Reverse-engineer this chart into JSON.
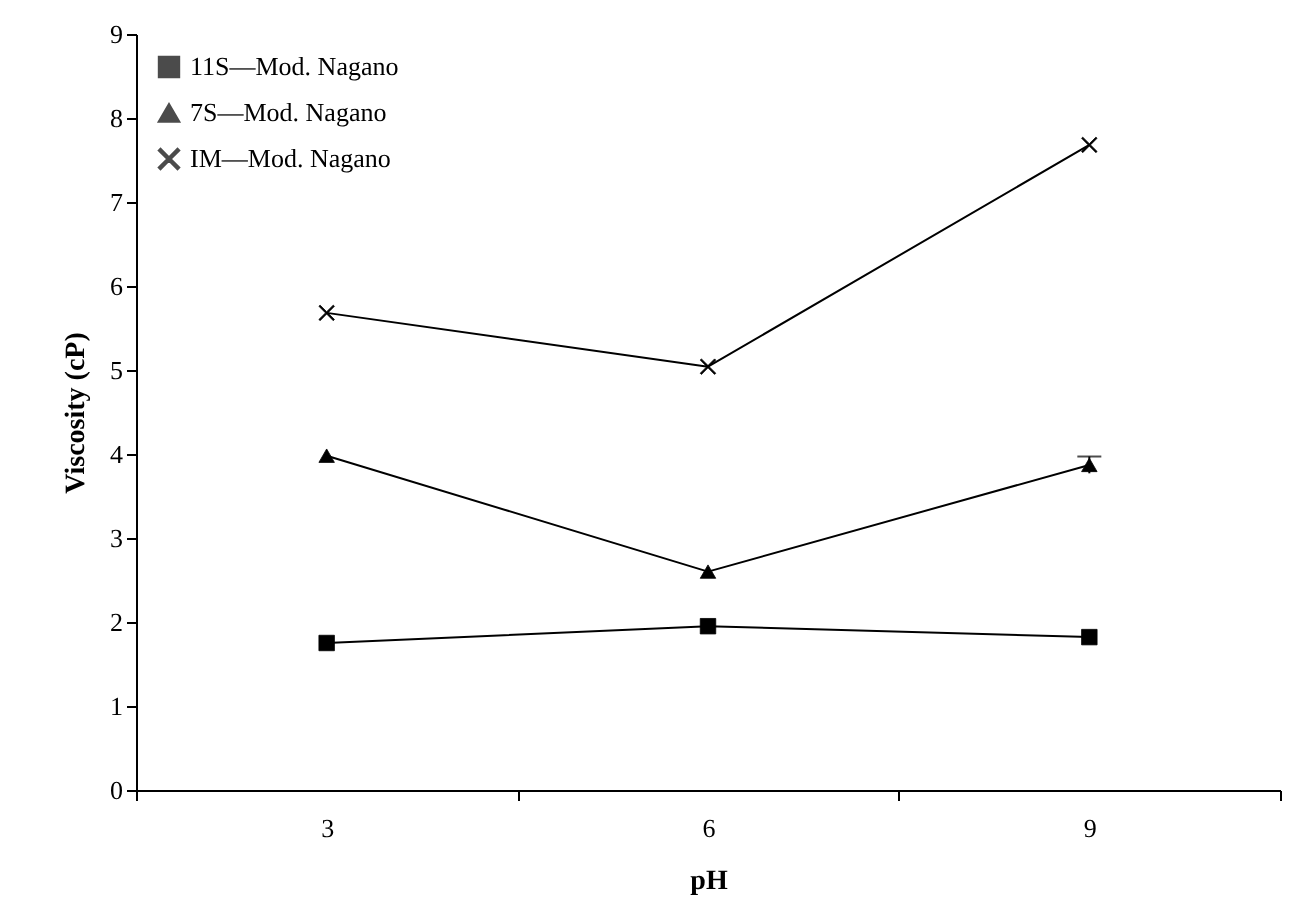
{
  "chart_data": {
    "type": "line",
    "xlabel": "pH",
    "ylabel": "Viscosity (cP)",
    "categories": [
      "3",
      "6",
      "9"
    ],
    "ylim": [
      0,
      9
    ],
    "yticks": [
      0,
      1,
      2,
      3,
      4,
      5,
      6,
      7,
      8,
      9
    ],
    "grid": false,
    "legend": "top left",
    "series": [
      {
        "name": "11S—Mod. Nagano",
        "color": "#000000",
        "marker": "square",
        "values": [
          1.75,
          1.95,
          1.82
        ]
      },
      {
        "name": "7S—Mod. Nagano",
        "color": "#000000",
        "marker": "triangle",
        "values": [
          3.98,
          2.6,
          3.87
        ],
        "errors": [
          null,
          null,
          0.1
        ]
      },
      {
        "name": "IM—Mod. Nagano",
        "color": "#000000",
        "marker": "cross",
        "values": [
          5.68,
          5.04,
          7.68
        ]
      }
    ]
  }
}
